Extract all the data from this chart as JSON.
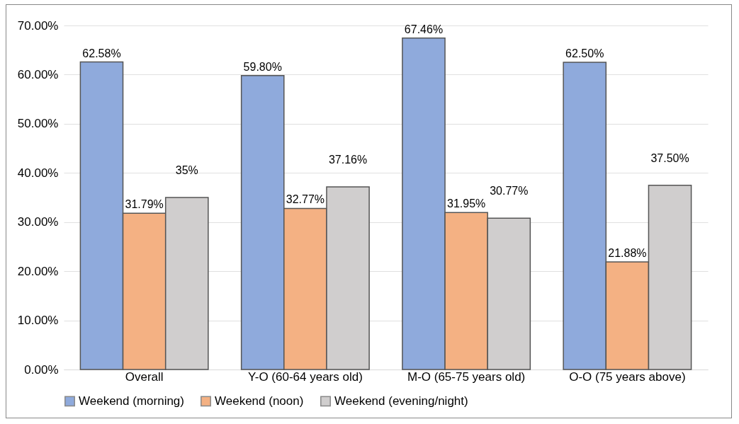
{
  "chart_data": {
    "type": "bar",
    "categories": [
      "Overall",
      "Y-O (60-64 years old)",
      "M-O (65-75 years old)",
      "O-O (75 years above)"
    ],
    "series": [
      {
        "name": "Weekend (morning)",
        "color": "#8faadc",
        "values": [
          62.58,
          59.8,
          67.46,
          62.5
        ],
        "value_labels": [
          "62.58%",
          "59.80%",
          "67.46%",
          "62.50%"
        ]
      },
      {
        "name": "Weekend (noon)",
        "color": "#f4b183",
        "values": [
          31.79,
          32.77,
          31.95,
          21.88
        ],
        "value_labels": [
          "31.79%",
          "32.77%",
          "31.95%",
          "21.88%"
        ]
      },
      {
        "name": "Weekend (evening/night)",
        "color": "#d0cece",
        "values": [
          35,
          37.16,
          30.77,
          37.5
        ],
        "value_labels": [
          "35%",
          "37.16%",
          "30.77%",
          "37.50%"
        ]
      }
    ],
    "ylim": [
      0,
      70
    ],
    "yticks": [
      {
        "value": 0,
        "label": "0.00%"
      },
      {
        "value": 10,
        "label": "10.00%"
      },
      {
        "value": 20,
        "label": "20.00%"
      },
      {
        "value": 30,
        "label": "30.00%"
      },
      {
        "value": 40,
        "label": "40.00%"
      },
      {
        "value": 50,
        "label": "50.00%"
      },
      {
        "value": 60,
        "label": "60.00%"
      },
      {
        "value": 70,
        "label": "70.00%"
      }
    ],
    "grid": "y",
    "legend": "bottom"
  }
}
